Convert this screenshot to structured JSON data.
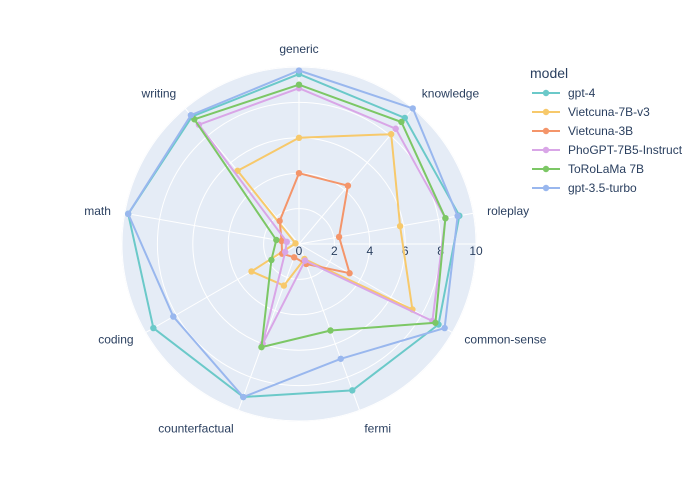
{
  "chart_data": {
    "type": "radar",
    "title": "",
    "categories": [
      "generic",
      "knowledge",
      "roleplay",
      "common-sense",
      "fermi",
      "counterfactual",
      "coding",
      "math",
      "writing"
    ],
    "radial_range": [
      0,
      10
    ],
    "radial_ticks": [
      "0",
      "2",
      "4",
      "6",
      "8",
      "10"
    ],
    "grid": true,
    "legend_title": "model",
    "legend_position": "top-right",
    "series": [
      {
        "name": "gpt-4",
        "color": "#6bc9c9",
        "values": [
          9.6,
          9.3,
          9.2,
          9.1,
          8.8,
          9.2,
          9.5,
          9.8,
          9.4
        ]
      },
      {
        "name": "Vietcuna-7B-v3",
        "color": "#f7c96b",
        "values": [
          6.0,
          8.1,
          5.8,
          7.4,
          0.9,
          2.5,
          3.1,
          0.2,
          5.4
        ]
      },
      {
        "name": "Vietcuna-3B",
        "color": "#f4956a",
        "values": [
          4.0,
          4.3,
          2.3,
          3.3,
          1.2,
          0.8,
          1.1,
          1.0,
          1.7
        ]
      },
      {
        "name": "PhoGPT-7B5-Instruct",
        "color": "#d9a6e7",
        "values": [
          8.8,
          8.5,
          8.4,
          8.7,
          1.0,
          6.0,
          0.9,
          0.7,
          8.8
        ]
      },
      {
        "name": "ToRoLaMa 7B",
        "color": "#7cc765",
        "values": [
          9.0,
          9.0,
          8.4,
          8.9,
          5.2,
          6.2,
          1.8,
          1.3,
          9.2
        ]
      },
      {
        "name": "gpt-3.5-turbo",
        "color": "#99b7ee",
        "values": [
          9.8,
          10.0,
          9.1,
          9.5,
          6.9,
          9.2,
          8.2,
          9.8,
          9.5
        ]
      }
    ]
  }
}
